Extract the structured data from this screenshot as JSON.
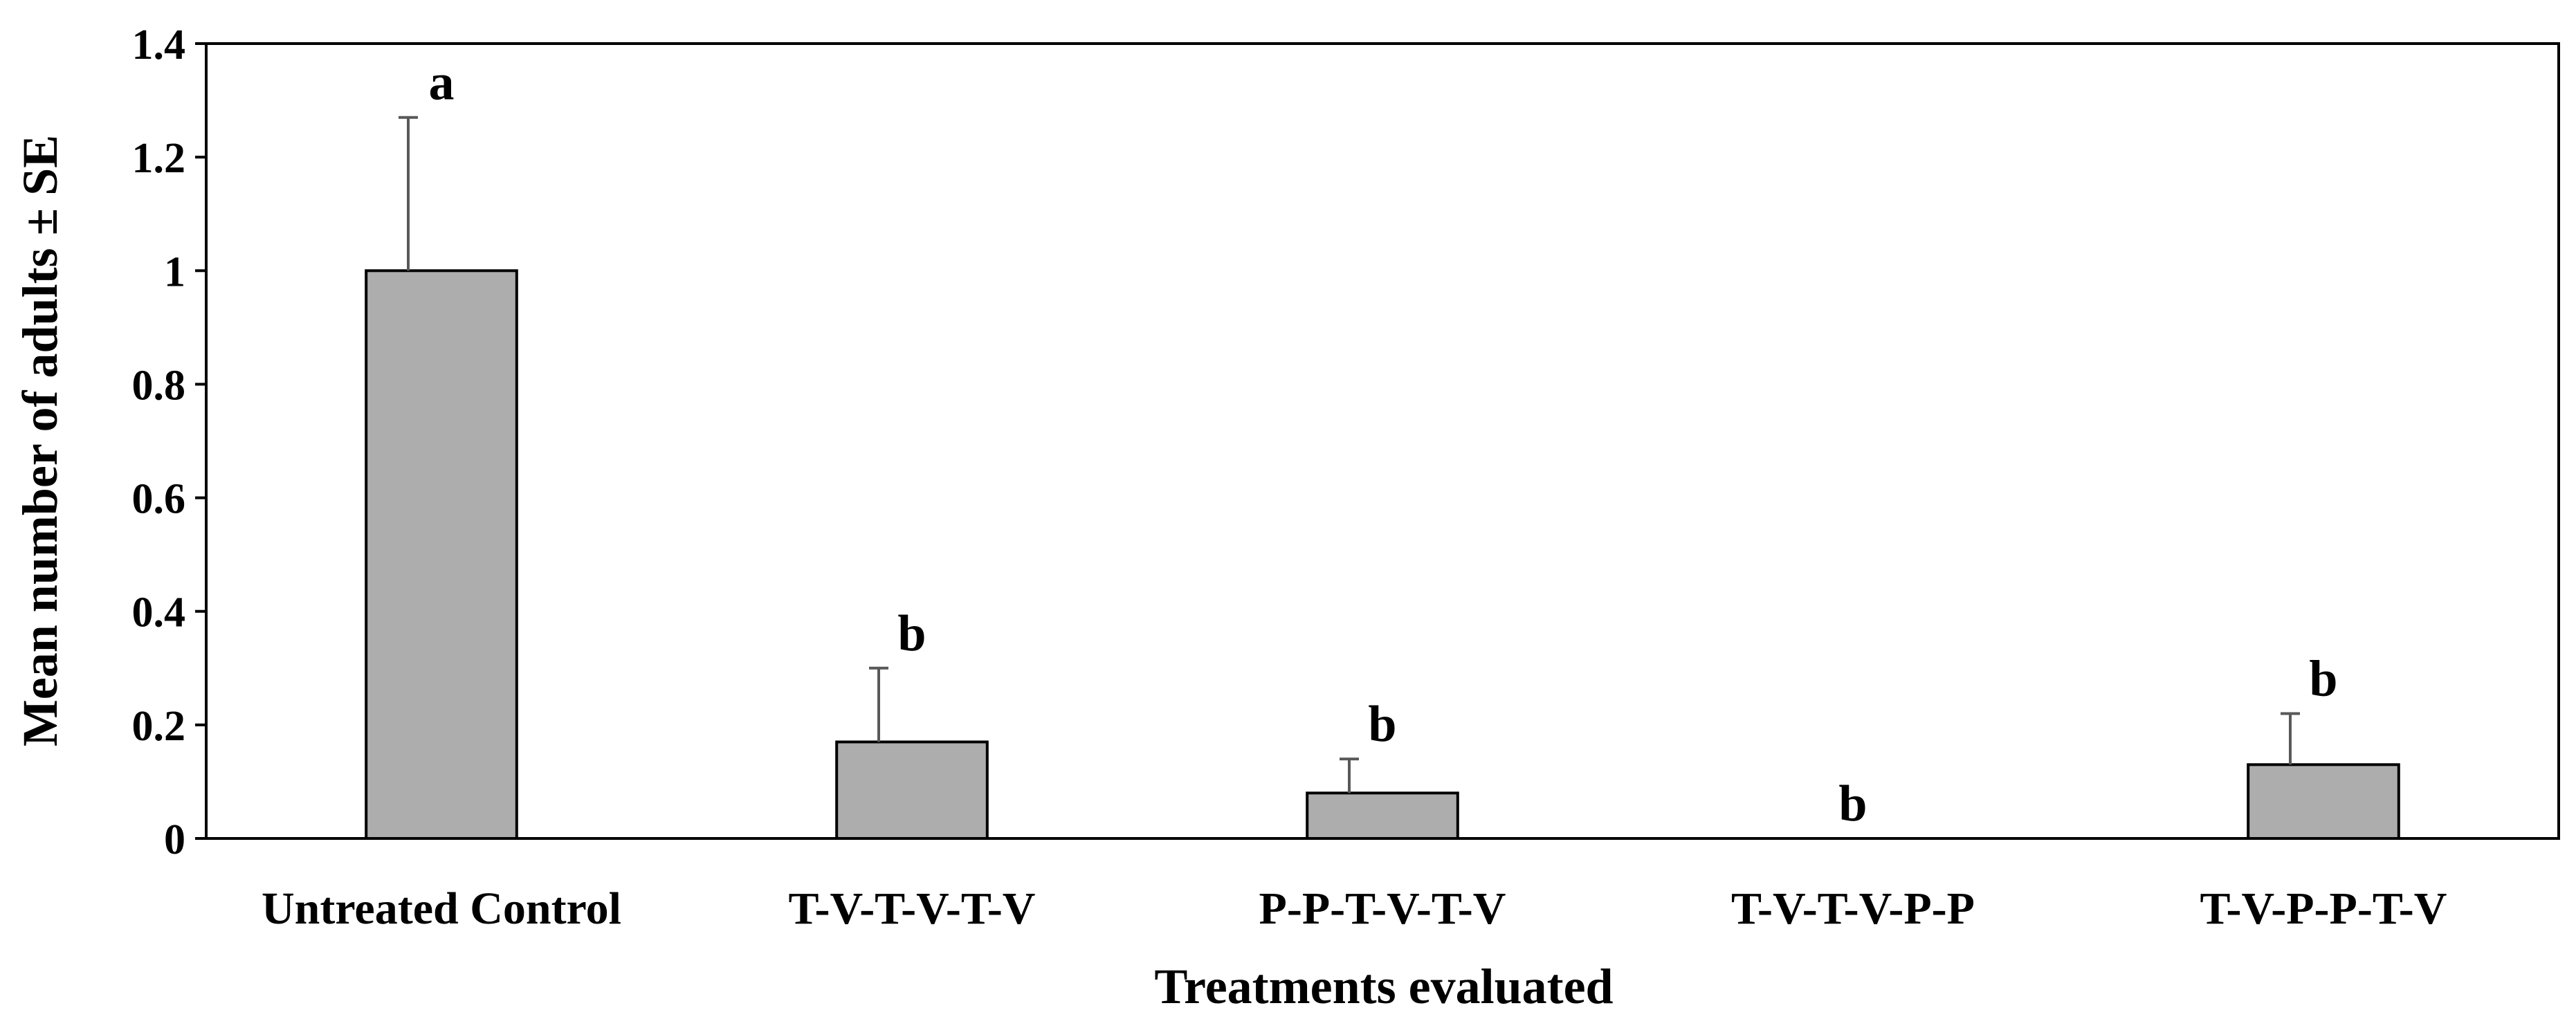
{
  "chart_data": {
    "type": "bar",
    "title": "",
    "xlabel": "Treatments evaluated",
    "ylabel": "Mean number of adults ± SE",
    "ylim": [
      0,
      1.4
    ],
    "yticks": [
      0,
      0.2,
      0.4,
      0.6,
      0.8,
      1,
      1.2,
      1.4
    ],
    "ytick_labels": [
      "0",
      "0.2",
      "0.4",
      "0.6",
      "0.8",
      "1",
      "1.2",
      "1.4"
    ],
    "grid": false,
    "legend": "none",
    "categories": [
      "Untreated Control",
      "T-V-T-V-T-V",
      "P-P-T-V-T-V",
      "T-V-T-V-P-P",
      "T-V-P-P-T-V"
    ],
    "values": [
      1.0,
      0.17,
      0.08,
      0.0,
      0.13
    ],
    "errors": [
      0.27,
      0.13,
      0.06,
      0.0,
      0.09
    ],
    "significance_letters": [
      "a",
      "b",
      "b",
      "b",
      "b"
    ]
  },
  "colors": {
    "bar_fill": "#adadad",
    "bar_stroke": "#000000",
    "error_bar": "#595959",
    "axis": "#000000",
    "background": "#ffffff"
  }
}
